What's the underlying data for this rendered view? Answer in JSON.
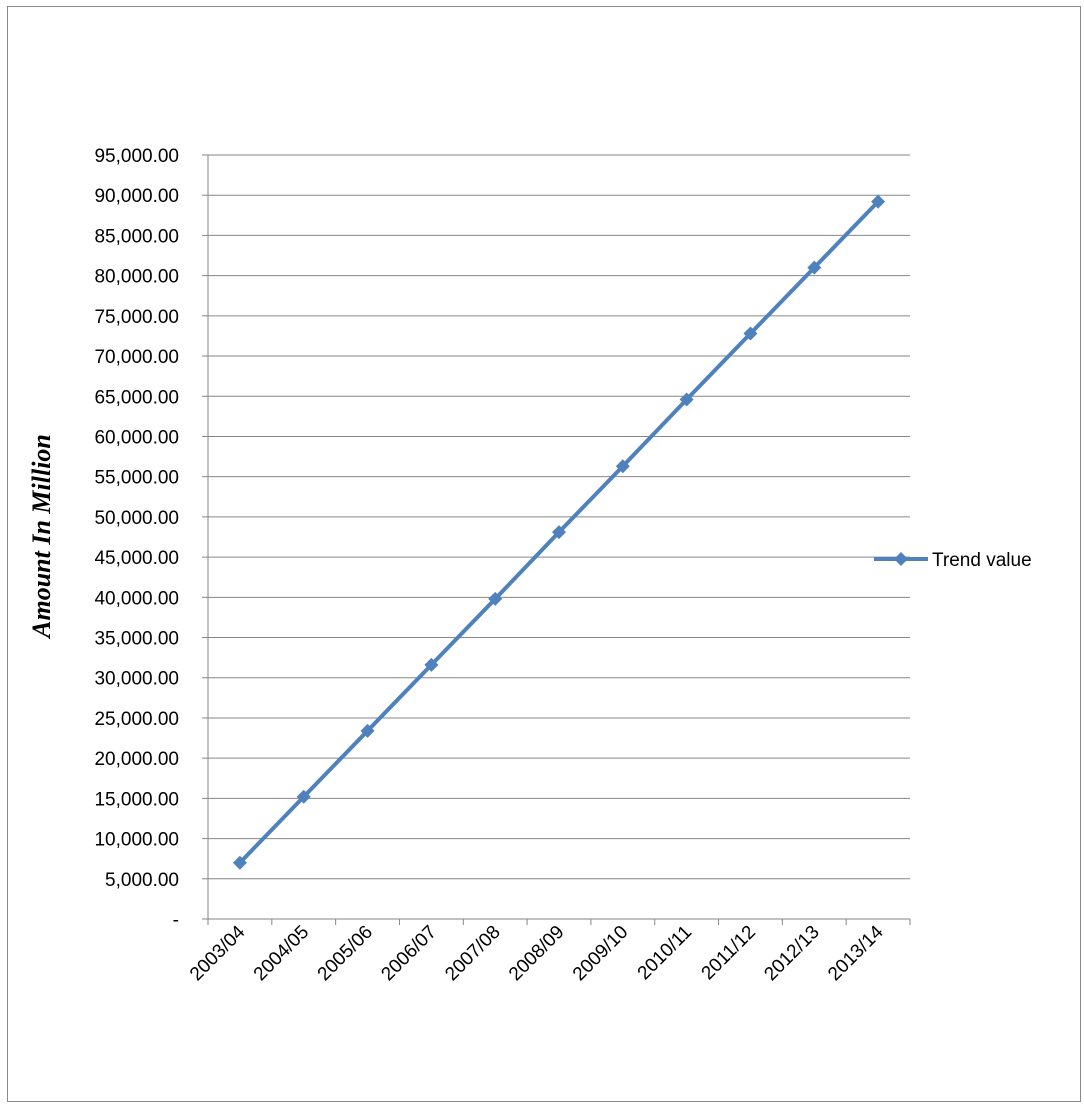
{
  "chart_data": {
    "type": "line",
    "title": "",
    "xlabel": "",
    "ylabel": "Amount In Million",
    "categories": [
      "2003/04",
      "2004/05",
      "2005/06",
      "2006/07",
      "2007/08",
      "2008/09",
      "2009/10",
      "2010/11",
      "2011/12",
      "2012/13",
      "2013/14"
    ],
    "series": [
      {
        "name": "Trend value",
        "color": "#4f81bd",
        "marker": "diamond",
        "values": [
          7000,
          15200,
          23400,
          31600,
          39800,
          48100,
          56300,
          64600,
          72800,
          81000,
          89200
        ]
      }
    ],
    "ylim": [
      0,
      95000
    ],
    "ytick_values": [
      0,
      5000,
      10000,
      15000,
      20000,
      25000,
      30000,
      35000,
      40000,
      45000,
      50000,
      55000,
      60000,
      65000,
      70000,
      75000,
      80000,
      85000,
      90000,
      95000
    ],
    "ytick_labels": [
      "-",
      "5,000.00",
      "10,000.00",
      "15,000.00",
      "20,000.00",
      "25,000.00",
      "30,000.00",
      "35,000.00",
      "40,000.00",
      "45,000.00",
      "50,000.00",
      "55,000.00",
      "60,000.00",
      "65,000.00",
      "70,000.00",
      "75,000.00",
      "80,000.00",
      "85,000.00",
      "90,000.00",
      "95,000.00"
    ],
    "grid": true,
    "legend_position": "right"
  }
}
